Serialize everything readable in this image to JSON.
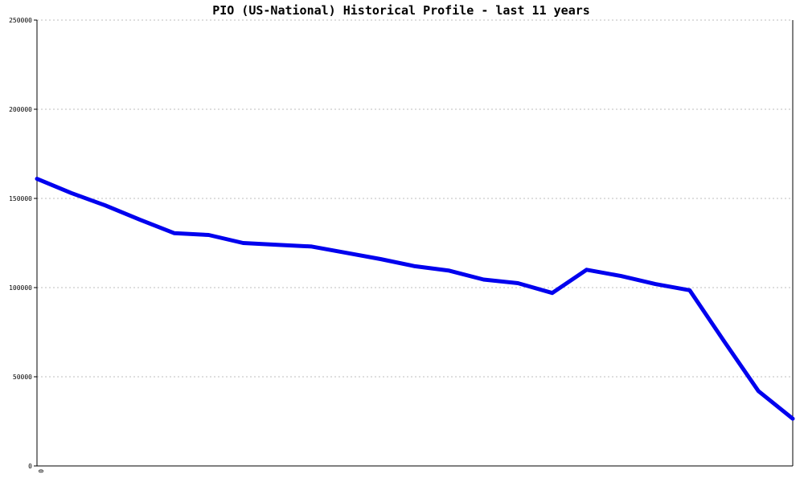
{
  "chart_data": {
    "type": "line",
    "title": "PIO (US-National) Historical Profile - last 11 years",
    "xlabel": "",
    "ylabel": "",
    "ylim": [
      0,
      250000
    ],
    "y_ticks": [
      "0",
      "50000",
      "100000",
      "150000",
      "200000",
      "250000"
    ],
    "x_ticks": [
      "0"
    ],
    "grid": true,
    "line_color": "#0000ee",
    "series": [
      {
        "values": [
          161000,
          153000,
          146000,
          138000,
          130500,
          129500,
          125000,
          124000,
          123000,
          119500,
          116000,
          112000,
          109500,
          104500,
          102500,
          97000,
          110000,
          106500,
          102000,
          98500,
          70000,
          42000,
          26500
        ]
      }
    ]
  }
}
